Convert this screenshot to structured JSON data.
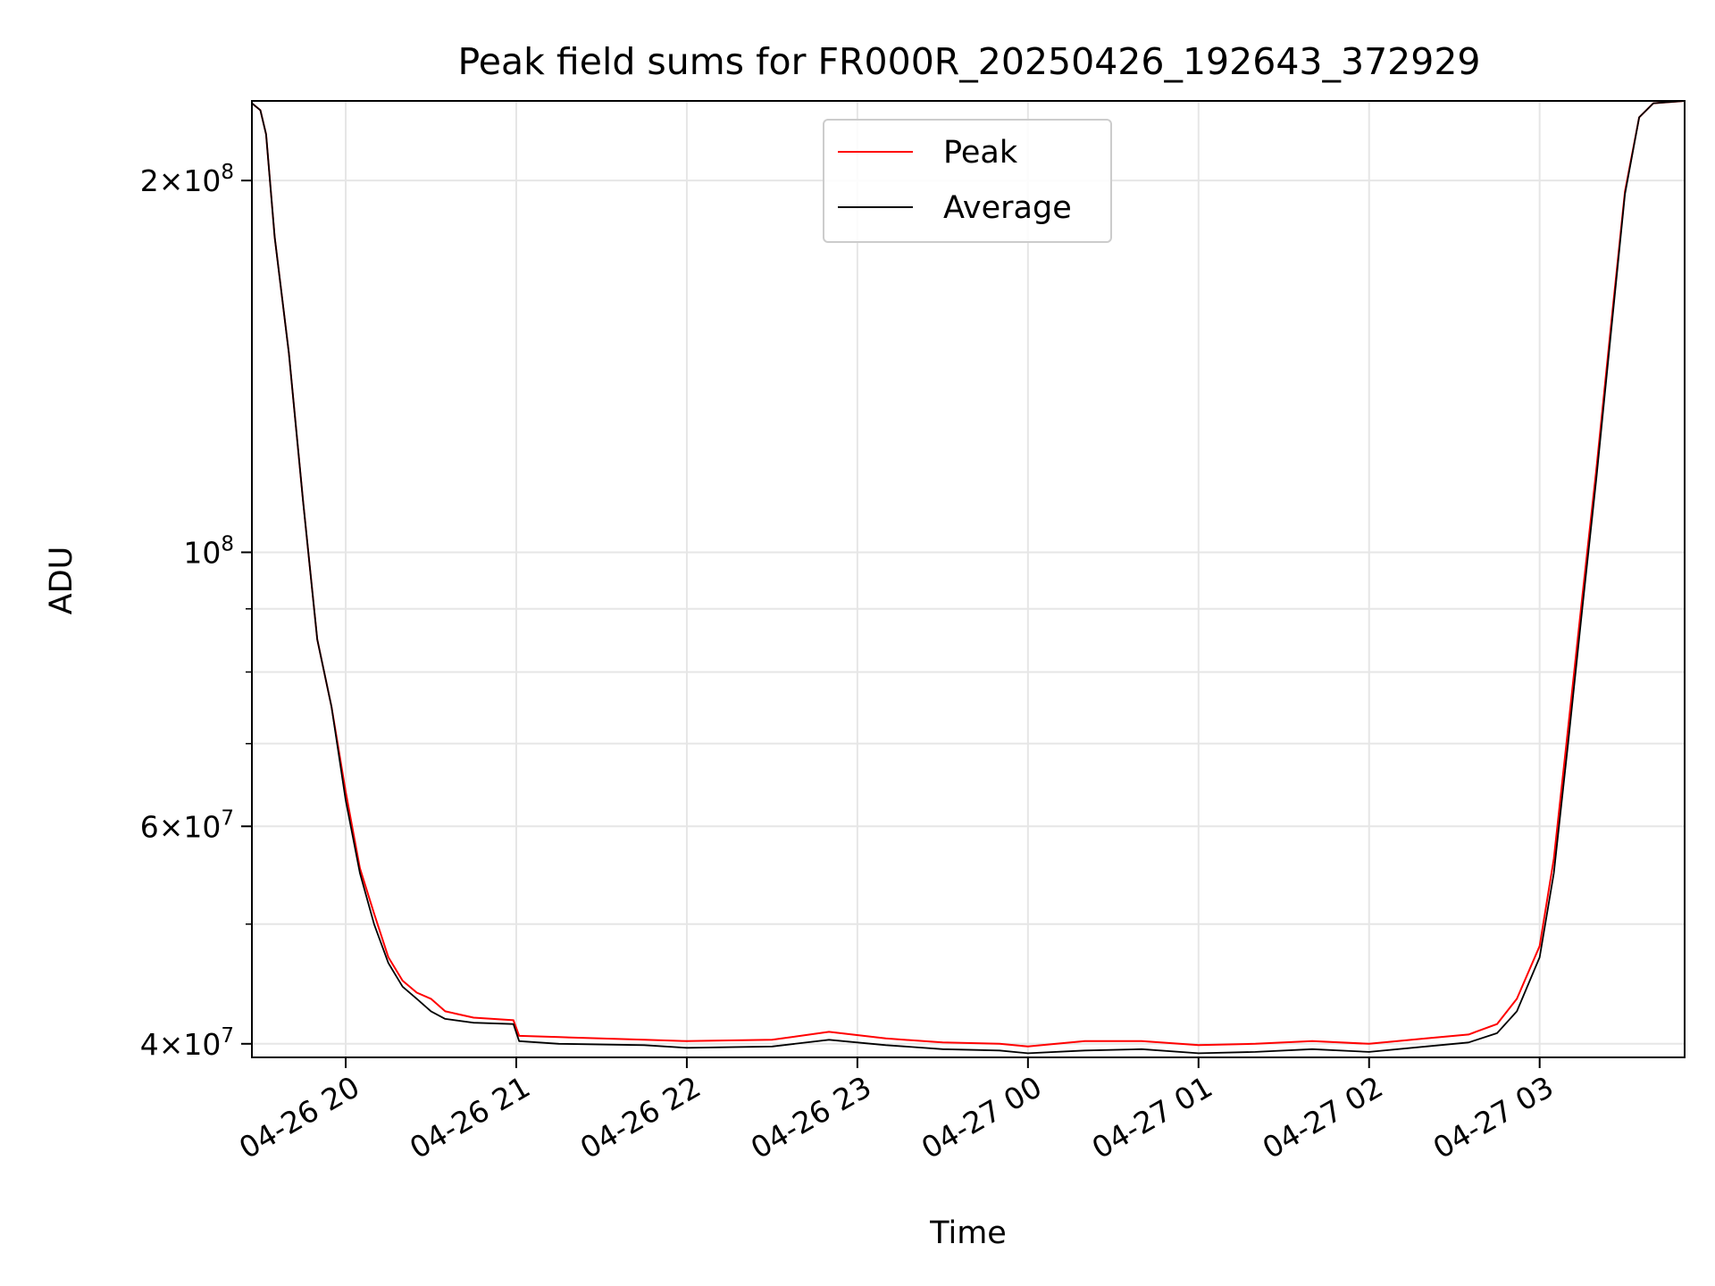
{
  "chart_data": {
    "type": "line",
    "title": "Peak field sums for FR000R_20250426_192643_372929",
    "xlabel": "Time",
    "ylabel": "ADU",
    "yscale": "log",
    "ylim": [
      39000000,
      232000000
    ],
    "xlim": [
      "2025-04-26T19:27",
      "2025-04-27T03:51"
    ],
    "grid": true,
    "legend_position": "upper center",
    "x_ticks": [
      {
        "t": "2025-04-26T20:00",
        "label": "04-26 20"
      },
      {
        "t": "2025-04-26T21:00",
        "label": "04-26 21"
      },
      {
        "t": "2025-04-26T22:00",
        "label": "04-26 22"
      },
      {
        "t": "2025-04-26T23:00",
        "label": "04-26 23"
      },
      {
        "t": "2025-04-27T00:00",
        "label": "04-27 00"
      },
      {
        "t": "2025-04-27T01:00",
        "label": "04-27 01"
      },
      {
        "t": "2025-04-27T02:00",
        "label": "04-27 02"
      },
      {
        "t": "2025-04-27T03:00",
        "label": "04-27 03"
      }
    ],
    "y_ticks_major": [
      {
        "v": 40000000,
        "base": "4",
        "exp": "7"
      },
      {
        "v": 60000000,
        "base": "6",
        "exp": "7"
      },
      {
        "v": 100000000,
        "base": "",
        "exp": "8"
      },
      {
        "v": 200000000,
        "base": "2",
        "exp": "8"
      }
    ],
    "y_ticks_minor": [
      50000000,
      70000000,
      80000000,
      90000000
    ],
    "series": [
      {
        "name": "Average",
        "color": "#000000",
        "points": [
          [
            "2025-04-26T19:27",
            231000000
          ],
          [
            "2025-04-26T19:30",
            228000000
          ],
          [
            "2025-04-26T19:32",
            218000000
          ],
          [
            "2025-04-26T19:35",
            180000000
          ],
          [
            "2025-04-26T19:40",
            145000000
          ],
          [
            "2025-04-26T19:45",
            110000000
          ],
          [
            "2025-04-26T19:50",
            85000000
          ],
          [
            "2025-04-26T19:55",
            75000000
          ],
          [
            "2025-04-26T20:00",
            63000000
          ],
          [
            "2025-04-26T20:05",
            55000000
          ],
          [
            "2025-04-26T20:10",
            50000000
          ],
          [
            "2025-04-26T20:15",
            46500000
          ],
          [
            "2025-04-26T20:20",
            44500000
          ],
          [
            "2025-04-26T20:25",
            43500000
          ],
          [
            "2025-04-26T20:30",
            42500000
          ],
          [
            "2025-04-26T20:35",
            41900000
          ],
          [
            "2025-04-26T20:45",
            41600000
          ],
          [
            "2025-04-26T20:59",
            41500000
          ],
          [
            "2025-04-26T21:01",
            40200000
          ],
          [
            "2025-04-26T21:15",
            40000000
          ],
          [
            "2025-04-26T21:45",
            39900000
          ],
          [
            "2025-04-26T22:00",
            39700000
          ],
          [
            "2025-04-26T22:30",
            39800000
          ],
          [
            "2025-04-26T22:50",
            40300000
          ],
          [
            "2025-04-26T23:10",
            39900000
          ],
          [
            "2025-04-26T23:30",
            39600000
          ],
          [
            "2025-04-26T23:50",
            39500000
          ],
          [
            "2025-04-27T00:00",
            39300000
          ],
          [
            "2025-04-27T00:20",
            39500000
          ],
          [
            "2025-04-27T00:40",
            39600000
          ],
          [
            "2025-04-27T01:00",
            39300000
          ],
          [
            "2025-04-27T01:20",
            39400000
          ],
          [
            "2025-04-27T01:40",
            39600000
          ],
          [
            "2025-04-27T02:00",
            39400000
          ],
          [
            "2025-04-27T02:20",
            39800000
          ],
          [
            "2025-04-27T02:35",
            40100000
          ],
          [
            "2025-04-27T02:45",
            40800000
          ],
          [
            "2025-04-27T02:52",
            42500000
          ],
          [
            "2025-04-27T03:00",
            47000000
          ],
          [
            "2025-04-27T03:05",
            55000000
          ],
          [
            "2025-04-27T03:10",
            70000000
          ],
          [
            "2025-04-27T03:15",
            90000000
          ],
          [
            "2025-04-27T03:20",
            115000000
          ],
          [
            "2025-04-27T03:25",
            150000000
          ],
          [
            "2025-04-27T03:30",
            195000000
          ],
          [
            "2025-04-27T03:35",
            225000000
          ],
          [
            "2025-04-27T03:40",
            231000000
          ],
          [
            "2025-04-27T03:51",
            232000000
          ]
        ]
      },
      {
        "name": "Peak",
        "color": "#ff0000",
        "points": [
          [
            "2025-04-26T19:27",
            231000000
          ],
          [
            "2025-04-26T19:30",
            228000000
          ],
          [
            "2025-04-26T19:32",
            218000000
          ],
          [
            "2025-04-26T19:35",
            180000000
          ],
          [
            "2025-04-26T19:40",
            145000000
          ],
          [
            "2025-04-26T19:45",
            110000000
          ],
          [
            "2025-04-26T19:50",
            85000000
          ],
          [
            "2025-04-26T19:55",
            75000000
          ],
          [
            "2025-04-26T20:00",
            64000000
          ],
          [
            "2025-04-26T20:05",
            55500000
          ],
          [
            "2025-04-26T20:10",
            51000000
          ],
          [
            "2025-04-26T20:15",
            47000000
          ],
          [
            "2025-04-26T20:20",
            45000000
          ],
          [
            "2025-04-26T20:25",
            44000000
          ],
          [
            "2025-04-26T20:30",
            43500000
          ],
          [
            "2025-04-26T20:35",
            42500000
          ],
          [
            "2025-04-26T20:45",
            42000000
          ],
          [
            "2025-04-26T20:59",
            41800000
          ],
          [
            "2025-04-26T21:01",
            40600000
          ],
          [
            "2025-04-26T21:15",
            40500000
          ],
          [
            "2025-04-26T21:45",
            40300000
          ],
          [
            "2025-04-26T22:00",
            40200000
          ],
          [
            "2025-04-26T22:30",
            40300000
          ],
          [
            "2025-04-26T22:50",
            40900000
          ],
          [
            "2025-04-26T23:10",
            40400000
          ],
          [
            "2025-04-26T23:30",
            40100000
          ],
          [
            "2025-04-26T23:50",
            40000000
          ],
          [
            "2025-04-27T00:00",
            39800000
          ],
          [
            "2025-04-27T00:20",
            40200000
          ],
          [
            "2025-04-27T00:40",
            40200000
          ],
          [
            "2025-04-27T01:00",
            39900000
          ],
          [
            "2025-04-27T01:20",
            40000000
          ],
          [
            "2025-04-27T01:40",
            40200000
          ],
          [
            "2025-04-27T02:00",
            40000000
          ],
          [
            "2025-04-27T02:20",
            40400000
          ],
          [
            "2025-04-27T02:35",
            40700000
          ],
          [
            "2025-04-27T02:45",
            41500000
          ],
          [
            "2025-04-27T02:52",
            43500000
          ],
          [
            "2025-04-27T03:00",
            48000000
          ],
          [
            "2025-04-27T03:05",
            56500000
          ],
          [
            "2025-04-27T03:10",
            72000000
          ],
          [
            "2025-04-27T03:15",
            92000000
          ],
          [
            "2025-04-27T03:20",
            117000000
          ],
          [
            "2025-04-27T03:25",
            152000000
          ],
          [
            "2025-04-27T03:30",
            196000000
          ],
          [
            "2025-04-27T03:35",
            225000000
          ],
          [
            "2025-04-27T03:40",
            231000000
          ],
          [
            "2025-04-27T03:51",
            232000000
          ]
        ]
      }
    ],
    "legend": [
      {
        "label": "Peak",
        "color": "#ff0000"
      },
      {
        "label": "Average",
        "color": "#000000"
      }
    ]
  }
}
